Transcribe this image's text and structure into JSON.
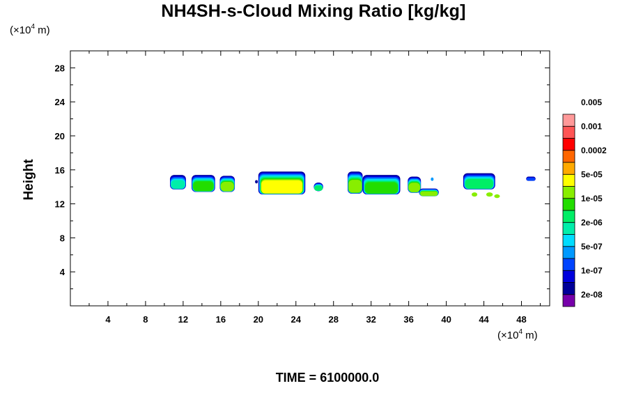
{
  "chart_data": {
    "type": "heatmap",
    "title": "NH4SH-s-Cloud Mixing Ratio [kg/kg]",
    "ylabel": "Height",
    "x_unit": {
      "prefix": "(×10",
      "exp": "4",
      "suffix": " m)"
    },
    "y_unit": {
      "prefix": "(×10",
      "exp": "4",
      "suffix": " m)"
    },
    "xlim": [
      0,
      51
    ],
    "ylim": [
      0,
      30
    ],
    "x_ticks": [
      4,
      8,
      12,
      16,
      20,
      24,
      28,
      32,
      36,
      40,
      44,
      48
    ],
    "y_ticks": [
      4,
      8,
      12,
      16,
      20,
      24,
      28
    ],
    "x_minor_step": 2,
    "y_minor_step": 2,
    "colorbar": {
      "colors": [
        "#7700aa",
        "#000099",
        "#0000dd",
        "#0044ff",
        "#0099ff",
        "#00ddff",
        "#00eeaa",
        "#00ee66",
        "#22dd00",
        "#88ee00",
        "#ffff00",
        "#ffaa00",
        "#ff6600",
        "#ff0000",
        "#ff5555",
        "#ff9999"
      ],
      "labels": [
        {
          "text": "2e-08",
          "index": 1
        },
        {
          "text": "1e-07",
          "index": 3
        },
        {
          "text": "5e-07",
          "index": 5
        },
        {
          "text": "2e-06",
          "index": 7
        },
        {
          "text": "1e-05",
          "index": 9
        },
        {
          "text": "5e-05",
          "index": 11
        },
        {
          "text": "0.0002",
          "index": 13
        },
        {
          "text": "0.001",
          "index": 15
        },
        {
          "text": "0.005",
          "index": 17
        }
      ]
    },
    "cloud_blobs": [
      {
        "x1": 10.6,
        "x2": 12.3,
        "y1": 13.7,
        "y2": 15.4,
        "level": 6
      },
      {
        "x1": 12.9,
        "x2": 15.4,
        "y1": 13.4,
        "y2": 15.4,
        "level": 8
      },
      {
        "x1": 15.9,
        "x2": 17.5,
        "y1": 13.4,
        "y2": 15.3,
        "level": 9
      },
      {
        "x1": 20.0,
        "x2": 25.0,
        "y1": 13.1,
        "y2": 15.8,
        "level": 10
      },
      {
        "x1": 25.9,
        "x2": 26.9,
        "y1": 13.5,
        "y2": 14.5,
        "level": 7
      },
      {
        "x1": 29.5,
        "x2": 31.1,
        "y1": 13.2,
        "y2": 15.8,
        "level": 9
      },
      {
        "x1": 31.1,
        "x2": 35.1,
        "y1": 13.1,
        "y2": 15.4,
        "level": 8
      },
      {
        "x1": 35.9,
        "x2": 37.3,
        "y1": 13.3,
        "y2": 15.2,
        "level": 9
      },
      {
        "x1": 37.1,
        "x2": 39.2,
        "y1": 12.9,
        "y2": 13.8,
        "level": 9
      },
      {
        "x1": 41.8,
        "x2": 45.2,
        "y1": 13.7,
        "y2": 15.6,
        "level": 7
      },
      {
        "x1": 48.5,
        "x2": 49.5,
        "y1": 14.7,
        "y2": 15.2,
        "level": 3
      }
    ],
    "small_cells": [
      {
        "x": 43.0,
        "y": 13.1,
        "rx": 0.3,
        "ry": 0.25,
        "level": 9
      },
      {
        "x": 44.6,
        "y": 13.1,
        "rx": 0.35,
        "ry": 0.25,
        "level": 9
      },
      {
        "x": 45.4,
        "y": 12.9,
        "rx": 0.3,
        "ry": 0.22,
        "level": 9
      },
      {
        "x": 19.8,
        "y": 14.6,
        "rx": 0.15,
        "ry": 0.2,
        "level": 1
      },
      {
        "x": 38.5,
        "y": 14.9,
        "rx": 0.15,
        "ry": 0.2,
        "level": 4
      }
    ]
  },
  "footer": {
    "time_label": "TIME = 6100000.0"
  }
}
